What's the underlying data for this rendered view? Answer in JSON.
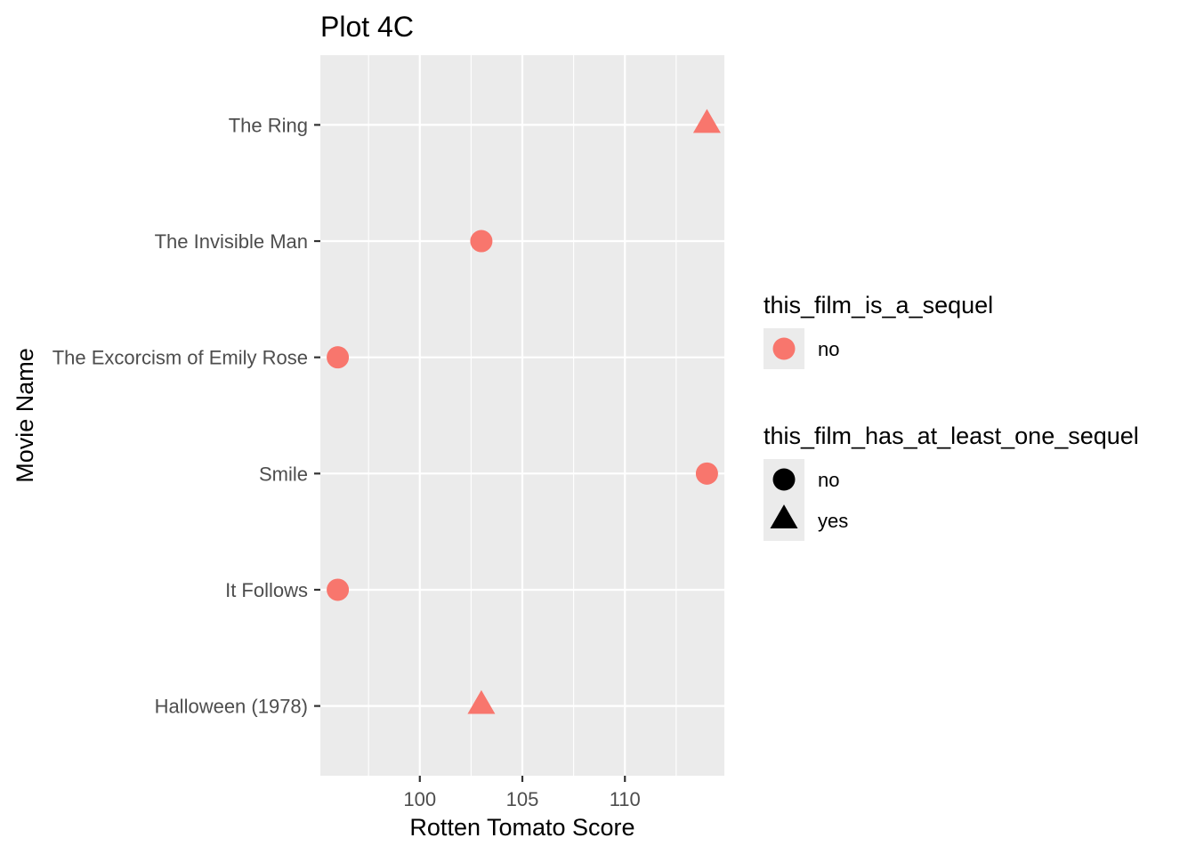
{
  "chart_data": {
    "type": "scatter",
    "title": "Plot 4C",
    "xlabel": "Rotten Tomato Score",
    "ylabel": "Movie Name",
    "xlim": [
      95.15,
      114.85
    ],
    "x_ticks": [
      100,
      105,
      110
    ],
    "grid": true,
    "categories": [
      "Halloween (1978)",
      "It Follows",
      "Smile",
      "The Excorcism of Emily Rose",
      "The Invisible Man",
      "The Ring"
    ],
    "points": [
      {
        "movie": "The Ring",
        "score": 114,
        "this_film_is_a_sequel": "no",
        "this_film_has_at_least_one_sequel": "yes"
      },
      {
        "movie": "The Invisible Man",
        "score": 103,
        "this_film_is_a_sequel": "no",
        "this_film_has_at_least_one_sequel": "no"
      },
      {
        "movie": "The Excorcism of Emily Rose",
        "score": 96,
        "this_film_is_a_sequel": "no",
        "this_film_has_at_least_one_sequel": "no"
      },
      {
        "movie": "Smile",
        "score": 114,
        "this_film_is_a_sequel": "no",
        "this_film_has_at_least_one_sequel": "no"
      },
      {
        "movie": "It Follows",
        "score": 96,
        "this_film_is_a_sequel": "no",
        "this_film_has_at_least_one_sequel": "no"
      },
      {
        "movie": "Halloween (1978)",
        "score": 103,
        "this_film_is_a_sequel": "no",
        "this_film_has_at_least_one_sequel": "yes"
      }
    ],
    "colors": {
      "no": "#F8766D",
      "panel": "#EBEBEB",
      "grid": "#FFFFFF"
    },
    "legends": [
      {
        "title": "this_film_is_a_sequel",
        "position": "right",
        "entries": [
          {
            "label": "no",
            "shape": "circle",
            "color": "#F8766D"
          }
        ]
      },
      {
        "title": "this_film_has_at_least_one_sequel",
        "position": "right",
        "entries": [
          {
            "label": "no",
            "shape": "circle",
            "color": "#000000"
          },
          {
            "label": "yes",
            "shape": "triangle",
            "color": "#000000"
          }
        ]
      }
    ]
  }
}
